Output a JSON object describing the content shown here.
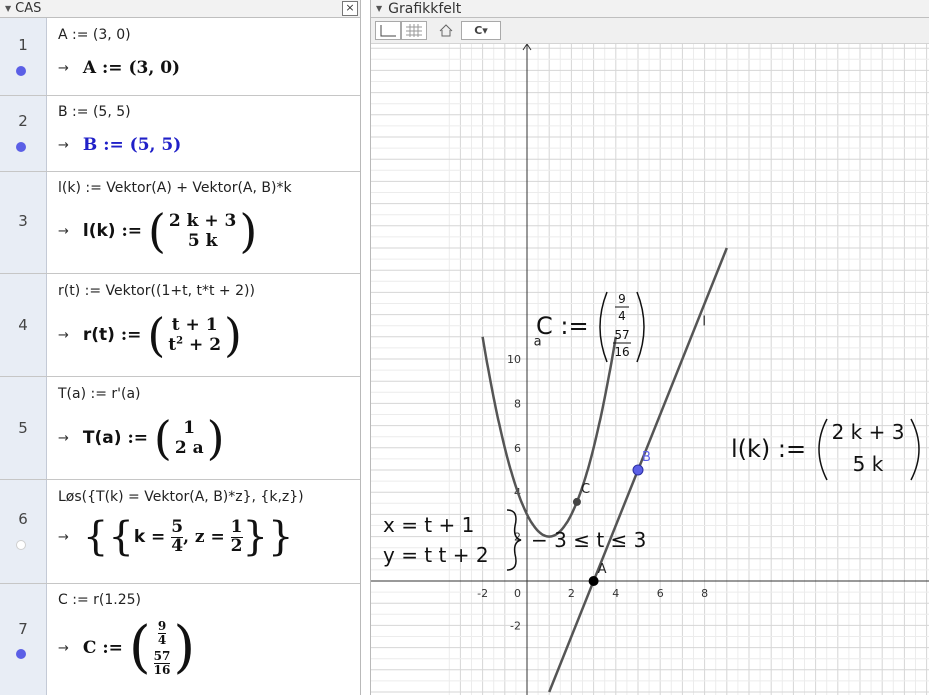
{
  "cas": {
    "title": "CAS",
    "close": "×",
    "rows": [
      {
        "num": "1",
        "input": "A := (3, 0)",
        "out_name": "A",
        "out_assign": ":=",
        "out_val": "(3, 0)"
      },
      {
        "num": "2",
        "input": "B := (5, 5)",
        "out_name": "B",
        "out_assign": ":=",
        "out_val": "(5, 5)"
      },
      {
        "num": "3",
        "input": "l(k) := Vektor(A) +  Vektor(A, B)*k",
        "out_name": "l(k)",
        "out_assign": ":=",
        "out_m1": "2 k + 3",
        "out_m2": "5 k"
      },
      {
        "num": "4",
        "input": "r(t) := Vektor((1+t, t*t + 2))",
        "out_name": "r(t)",
        "out_assign": ":=",
        "out_m1": "t + 1",
        "out_m2a": "t",
        "out_m2sup": "2",
        "out_m2b": " + 2"
      },
      {
        "num": "5",
        "input": "T(a) := r'(a)",
        "out_name": "T(a)",
        "out_assign": ":=",
        "out_m1": "1",
        "out_m2": "2 a"
      },
      {
        "num": "6",
        "input": "Løs({T(k) = Vektor(A, B)*z}, {k,z})",
        "out_k": "k",
        "out_eq": "=",
        "out_kn": "5",
        "out_kd": "4",
        "out_z": "z",
        "out_zn": "1",
        "out_zd": "2"
      },
      {
        "num": "7",
        "input": "C := r(1.25)",
        "out_name": "C",
        "out_assign": ":=",
        "out_c1n": "9",
        "out_c1d": "4",
        "out_c2n": "57",
        "out_c2d": "16"
      }
    ]
  },
  "graphics": {
    "title": "Grafikkfelt",
    "x_ticks": [
      "-2",
      "0",
      "2",
      "4",
      "6",
      "8"
    ],
    "y_ticks": [
      "10",
      "8",
      "6",
      "4",
      "2",
      "-2"
    ],
    "curve_label": "a",
    "line_label": "l",
    "point_A": "A",
    "point_B": "B",
    "point_C": "C",
    "text_C_lhs": "C :=",
    "text_C_1n": "9",
    "text_C_1d": "4",
    "text_C_2n": "57",
    "text_C_2d": "16",
    "text_l_lhs": "l(k) :=",
    "text_l_1": "2 k + 3",
    "text_l_2": "5 k",
    "param_x": "x = t + 1",
    "param_y": "y = t t + 2",
    "param_range": "− 3 ≤ t ≤ 3",
    "colors": {
      "point_blue": "#5b5fe6",
      "curve": "#555555",
      "point_black": "#000000"
    }
  }
}
